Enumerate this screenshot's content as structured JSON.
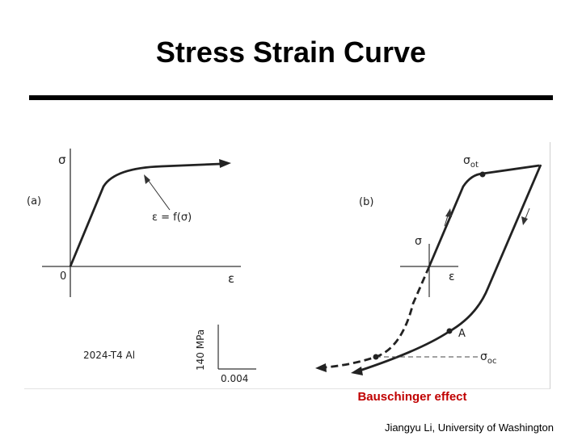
{
  "slide": {
    "title": "Stress Strain Curve",
    "caption": "Bauschinger effect",
    "credit": "Jiangyu Li, University of Washington",
    "caption_color": "#c00000"
  },
  "panel_a": {
    "label": "(a)",
    "y_axis": "σ",
    "x_axis": "ε",
    "origin": "0",
    "annotation": "ε = f(σ)",
    "material": "2024-T4  Al",
    "scale_stress": "140 MPa",
    "scale_strain": "0.004"
  },
  "panel_b": {
    "label": "(b)",
    "y_axis": "σ",
    "x_axis": "ε",
    "point_a": "A",
    "sigma_ot": "σ",
    "sigma_ot_sub": "ot",
    "sigma_oc": "σ",
    "sigma_oc_sub": "oc"
  }
}
